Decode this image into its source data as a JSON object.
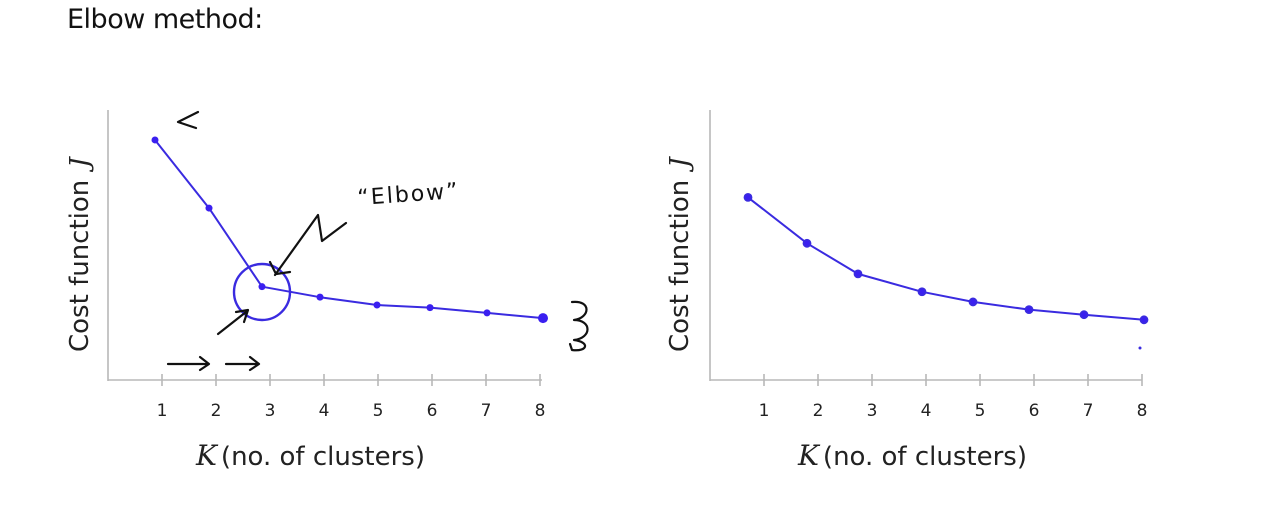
{
  "title": "Elbow method:",
  "chart_data": [
    {
      "type": "line",
      "title": "",
      "xlabel": "K (no. of clusters)",
      "xlabel_var": "K",
      "xlabel_rest": "(no. of clusters)",
      "ylabel": "Cost function J",
      "ylabel_text": "Cost function",
      "ylabel_var": "J",
      "categories": [
        "1",
        "2",
        "3",
        "4",
        "5",
        "6",
        "7",
        "8"
      ],
      "x": [
        1,
        2,
        3,
        4,
        5,
        6,
        7,
        8
      ],
      "values": [
        0.92,
        0.66,
        0.36,
        0.32,
        0.29,
        0.28,
        0.26,
        0.24
      ],
      "ylim": [
        0,
        1
      ],
      "grid": false,
      "legend": null,
      "annotations": [
        {
          "text": "\"Elbow\"",
          "target_x": 3,
          "kind": "circle-and-arrow"
        },
        {
          "text": "",
          "kind": "arrow",
          "near_x": 1
        },
        {
          "text": "",
          "kind": "right-arrows",
          "near_x": [
            1.5,
            2.5
          ]
        },
        {
          "text": "",
          "kind": "scribble",
          "near_x": 8
        }
      ]
    },
    {
      "type": "line",
      "title": "",
      "xlabel": "K (no. of clusters)",
      "xlabel_var": "K",
      "xlabel_rest": "(no. of clusters)",
      "ylabel": "Cost function J",
      "ylabel_text": "Cost function",
      "ylabel_var": "J",
      "categories": [
        "1",
        "2",
        "3",
        "4",
        "5",
        "6",
        "7",
        "8"
      ],
      "x": [
        1,
        2,
        3,
        4,
        5,
        6,
        7,
        8
      ],
      "values": [
        0.72,
        0.54,
        0.42,
        0.35,
        0.31,
        0.28,
        0.26,
        0.24
      ],
      "ylim": [
        0,
        1
      ],
      "grid": false,
      "legend": null
    }
  ]
}
